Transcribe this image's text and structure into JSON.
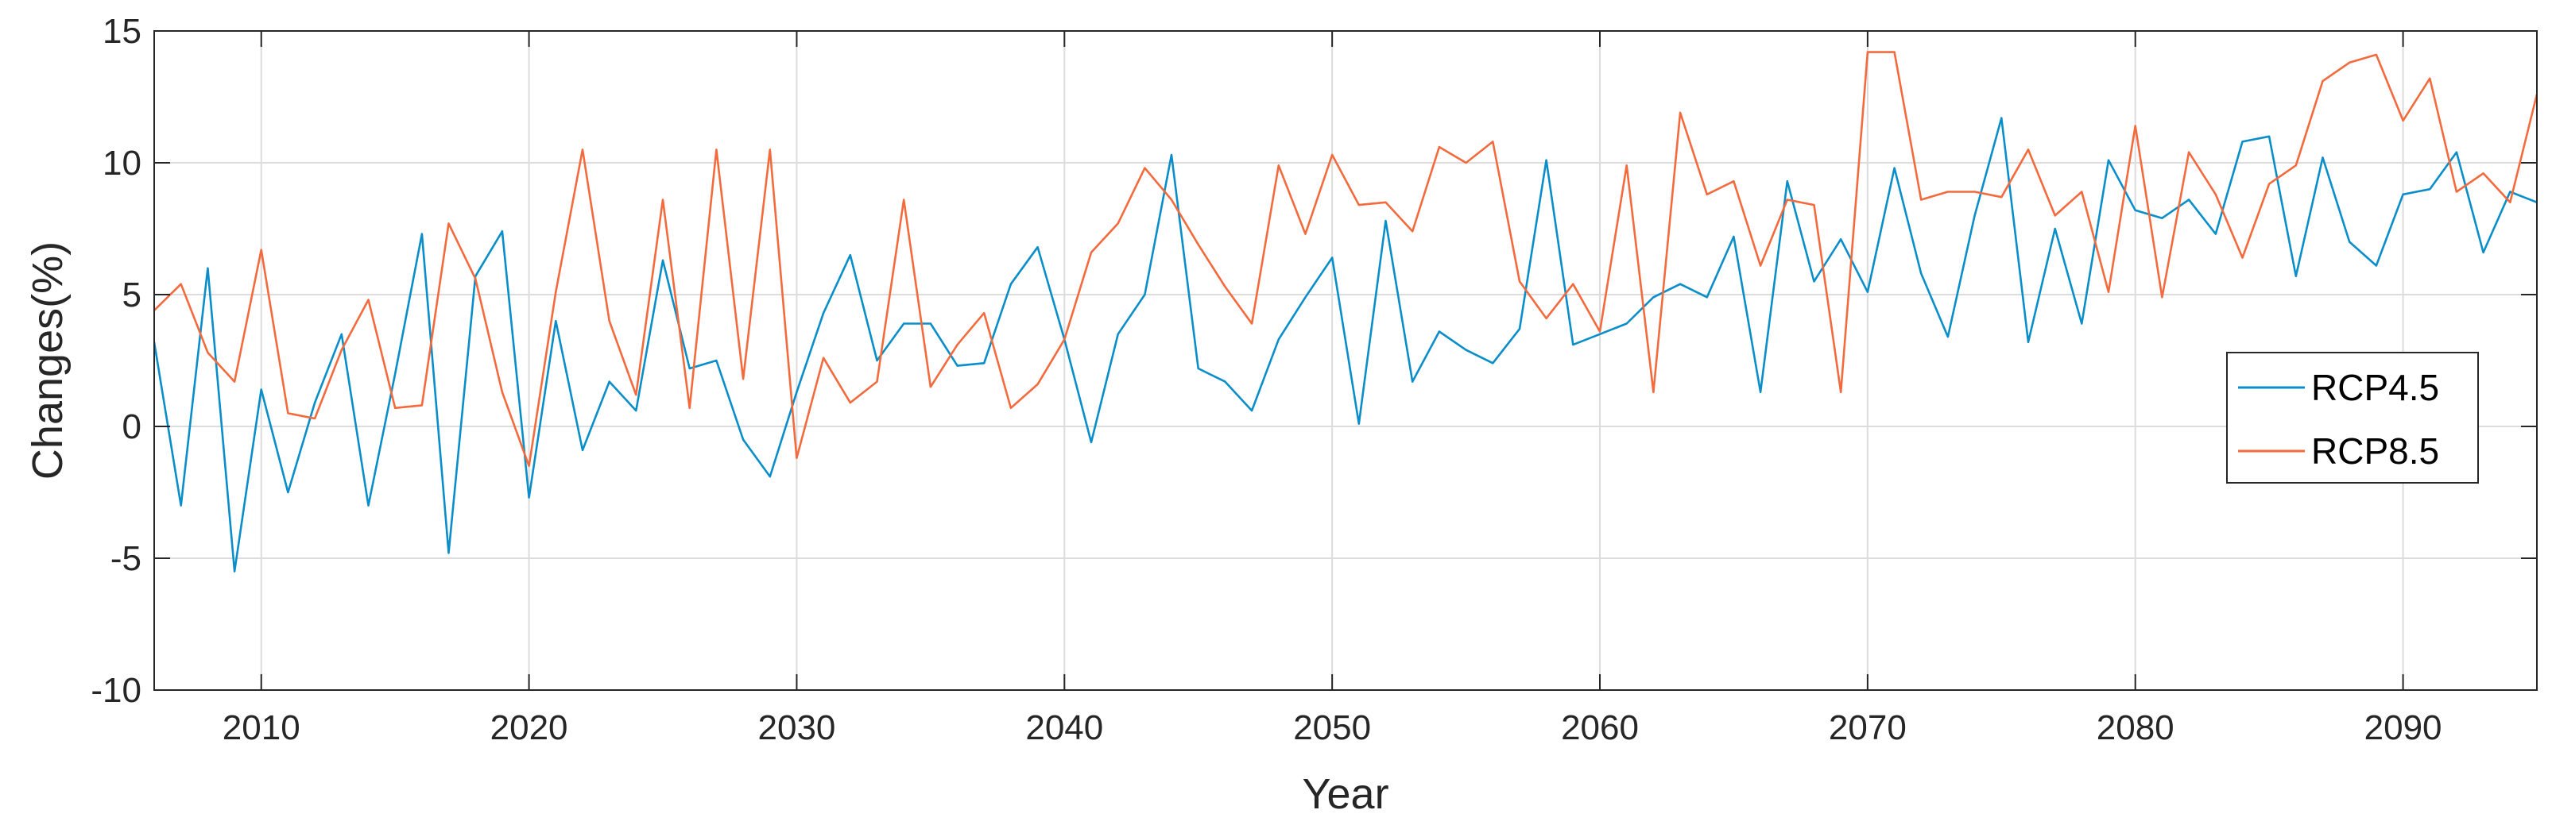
{
  "chart_data": {
    "type": "line",
    "title": "",
    "xlabel": "Year",
    "ylabel": "Changes(%)",
    "xlim": [
      2006,
      2095
    ],
    "ylim": [
      -10,
      15
    ],
    "xticks": [
      2010,
      2020,
      2030,
      2040,
      2050,
      2060,
      2070,
      2080,
      2090
    ],
    "yticks": [
      -10,
      -5,
      0,
      5,
      10,
      15
    ],
    "grid": true,
    "legend_position": "right",
    "x": [
      2006,
      2007,
      2008,
      2009,
      2010,
      2011,
      2012,
      2013,
      2014,
      2015,
      2016,
      2017,
      2018,
      2019,
      2020,
      2021,
      2022,
      2023,
      2024,
      2025,
      2026,
      2027,
      2028,
      2029,
      2030,
      2031,
      2032,
      2033,
      2034,
      2035,
      2036,
      2037,
      2038,
      2039,
      2040,
      2041,
      2042,
      2043,
      2044,
      2045,
      2046,
      2047,
      2048,
      2049,
      2050,
      2051,
      2052,
      2053,
      2054,
      2055,
      2056,
      2057,
      2058,
      2059,
      2060,
      2061,
      2062,
      2063,
      2064,
      2065,
      2066,
      2067,
      2068,
      2069,
      2070,
      2071,
      2072,
      2073,
      2074,
      2075,
      2076,
      2077,
      2078,
      2079,
      2080,
      2081,
      2082,
      2083,
      2084,
      2085,
      2086,
      2087,
      2088,
      2089,
      2090,
      2091,
      2092,
      2093,
      2094,
      2095
    ],
    "series": [
      {
        "name": "RCP4.5",
        "color": "#0a8ec9",
        "values": [
          3.2,
          -3.0,
          6.0,
          -5.5,
          1.4,
          -2.5,
          0.9,
          3.5,
          -3.0,
          2.0,
          7.3,
          -4.8,
          5.7,
          7.4,
          -2.7,
          4.0,
          -0.9,
          1.7,
          0.6,
          6.3,
          2.2,
          2.5,
          -0.5,
          -1.9,
          1.3,
          4.3,
          6.5,
          2.5,
          3.9,
          3.9,
          2.3,
          2.4,
          5.4,
          6.8,
          3.3,
          -0.6,
          3.5,
          5.0,
          10.3,
          2.2,
          1.7,
          0.6,
          3.3,
          4.9,
          6.4,
          0.1,
          7.8,
          1.7,
          3.6,
          2.9,
          2.4,
          3.7,
          10.1,
          3.1,
          3.5,
          3.9,
          4.9,
          5.4,
          4.9,
          7.2,
          1.3,
          9.3,
          5.5,
          7.1,
          5.1,
          9.8,
          5.8,
          3.4,
          8.0,
          11.7,
          3.2,
          7.5,
          3.9,
          10.1,
          8.2,
          7.9,
          8.6,
          7.3,
          10.8,
          11.0,
          5.7,
          10.2,
          7.0,
          6.1,
          8.8,
          9.0,
          10.4,
          6.6,
          8.9,
          8.5
        ]
      },
      {
        "name": "RCP8.5",
        "color": "#f36a3d",
        "values": [
          4.4,
          5.4,
          2.8,
          1.7,
          6.7,
          0.5,
          0.3,
          2.9,
          4.8,
          0.7,
          0.8,
          7.7,
          5.6,
          1.3,
          -1.5,
          5.1,
          10.5,
          4.0,
          1.2,
          8.6,
          0.7,
          10.5,
          1.8,
          10.5,
          -1.2,
          2.6,
          0.9,
          1.7,
          8.6,
          1.5,
          3.1,
          4.3,
          0.7,
          1.6,
          3.3,
          6.6,
          7.7,
          9.8,
          8.6,
          6.9,
          5.3,
          3.9,
          9.9,
          7.3,
          10.3,
          8.4,
          8.5,
          7.4,
          10.6,
          10.0,
          10.8,
          5.5,
          4.1,
          5.4,
          3.6,
          9.9,
          1.3,
          11.9,
          8.8,
          9.3,
          6.1,
          8.6,
          8.4,
          1.3,
          14.2,
          14.2,
          8.6,
          8.9,
          8.9,
          8.7,
          10.5,
          8.0,
          8.9,
          5.1,
          11.4,
          4.9,
          10.4,
          8.8,
          6.4,
          9.2,
          9.9,
          13.1,
          13.8,
          14.1,
          11.6,
          13.2,
          8.9,
          9.6,
          8.5,
          12.6
        ]
      }
    ]
  }
}
